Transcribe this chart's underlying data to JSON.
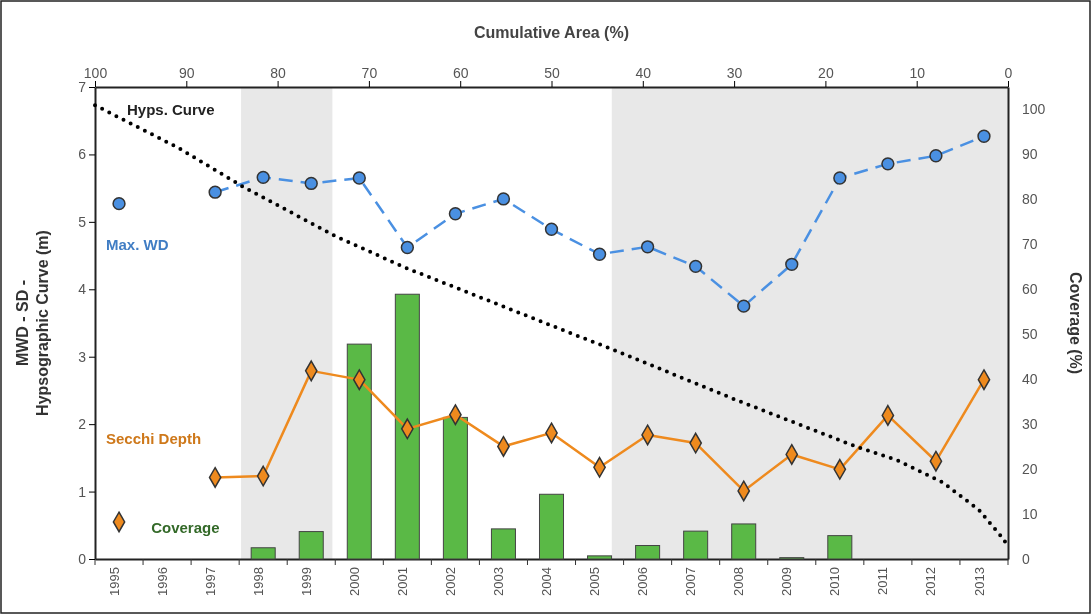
{
  "chart_data": {
    "type": "line",
    "categories": [
      "1995",
      "1996",
      "1997",
      "1998",
      "1999",
      "2000",
      "2001",
      "2002",
      "2003",
      "2004",
      "2005",
      "2006",
      "2007",
      "2008",
      "2009",
      "2010",
      "2011",
      "2012",
      "2013"
    ],
    "x2label": "Cumulative Area (%)",
    "ylabel": "MWD - SD - Hypsographic Curve (m)",
    "y2label": "Coverage (%)",
    "x2lim": [
      100,
      0
    ],
    "x2ticks": [
      100,
      90,
      80,
      70,
      60,
      50,
      40,
      30,
      20,
      10,
      0
    ],
    "ylim": [
      0,
      7
    ],
    "yticks": [
      0,
      1,
      2,
      3,
      4,
      5,
      6,
      7
    ],
    "y2lim": [
      0,
      105
    ],
    "y2ticks": [
      0,
      10,
      20,
      30,
      40,
      50,
      60,
      70,
      80,
      90,
      100
    ],
    "grid": false,
    "bands": [
      {
        "axis": "x2",
        "from": 84,
        "to": 74,
        "color": "#e8e8e8"
      },
      {
        "axis": "x2",
        "from": 43.4,
        "to": 0,
        "color": "#e8e8e8"
      }
    ],
    "series": [
      {
        "name": "Coverage",
        "type": "bar",
        "axis": "y2",
        "color": "#5ab946",
        "values": [
          null,
          null,
          null,
          2.5,
          6.1,
          47.8,
          58.9,
          31.5,
          6.7,
          14.4,
          0.7,
          3.0,
          6.2,
          7.8,
          0.3,
          5.2,
          null,
          null,
          null
        ]
      },
      {
        "name": "Max. WD",
        "color": "#4a90e2",
        "line_style": "dashed",
        "marker": "circle",
        "values": [
          5.27,
          null,
          5.44,
          5.66,
          5.57,
          5.65,
          4.62,
          5.12,
          5.34,
          4.89,
          4.52,
          4.63,
          4.34,
          3.75,
          4.37,
          5.65,
          5.86,
          5.98,
          6.27
        ]
      },
      {
        "name": "Secchi Depth",
        "color": "#ee8a1e",
        "line_style": "solid",
        "marker": "diamond",
        "values": [
          0.55,
          null,
          1.21,
          1.23,
          2.79,
          2.66,
          1.93,
          2.14,
          1.67,
          1.87,
          1.36,
          1.84,
          1.72,
          1.01,
          1.55,
          1.33,
          2.13,
          1.45,
          2.66
        ]
      },
      {
        "name": "Hyps. Curve",
        "axis": "x2",
        "color": "#000000",
        "line_style": "dotted",
        "marker": "none",
        "x": [
          100,
          90.9,
          83.9,
          73.7,
          66,
          46.6,
          43.7,
          29.8,
          16.5,
          12.2,
          7.2,
          3.2,
          0.4,
          0
        ],
        "values": [
          6.73,
          6.1,
          5.53,
          4.79,
          4.32,
          3.28,
          3.13,
          2.36,
          1.66,
          1.47,
          1.14,
          0.73,
          0.28,
          0.15
        ]
      }
    ]
  }
}
